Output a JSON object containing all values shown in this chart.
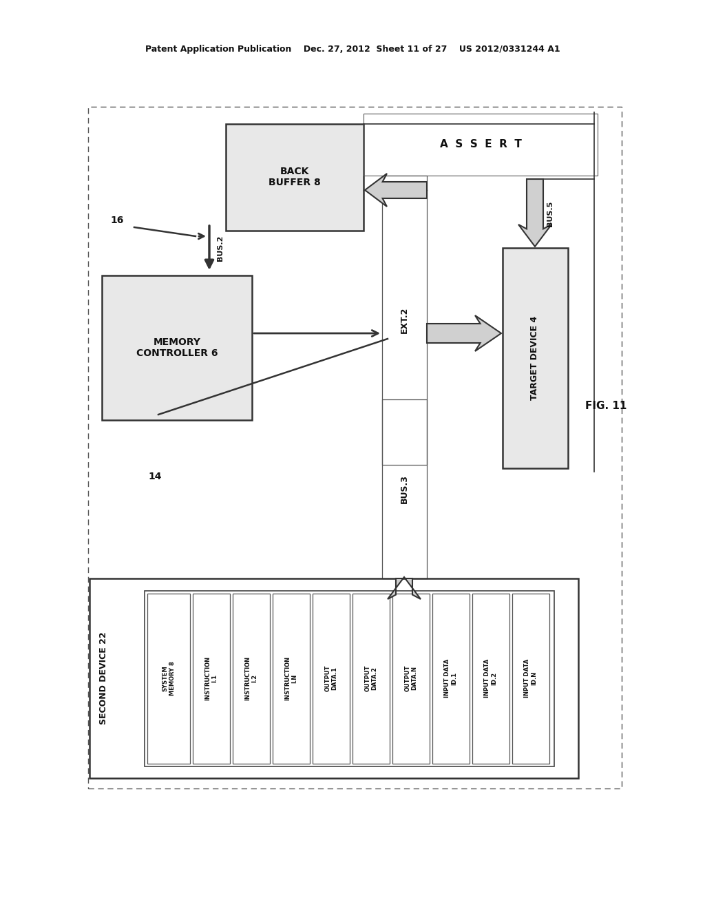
{
  "bg_color": "#ffffff",
  "header_text": "Patent Application Publication    Dec. 27, 2012  Sheet 11 of 27    US 2012/0331244 A1",
  "fig_label": "FIG. 11",
  "assert_text": "A  S  S  E  R  T",
  "back_buffer_label": "BACK\nBUFFER 8",
  "memory_controller_label": "MEMORY\nCONTROLLER 6",
  "target_device_label": "TARGET DEVICE 4",
  "second_device_label": "SECOND DEVICE 22",
  "bus2_label": "BUS.2",
  "bus3_label": "BUS.3",
  "bus5_label": "BUS.5",
  "ext2_label": "EXT.2",
  "label_16": "16",
  "label_14": "14",
  "system_memory_label": "SYSTEM\nMEMORY 8",
  "col_labels": [
    "INSTRUCTION\nI.1",
    "INSTRUCTION\nI.2",
    "INSTRUCTION\nI.N",
    "OUTPUT\nDATA.1",
    "OUTPUT\nDATA.2",
    "OUTPUT\nDATA.N",
    "INPUT DATA\nID.1",
    "INPUT DATA\nID.2",
    "INPUT DATA\nID.N"
  ]
}
